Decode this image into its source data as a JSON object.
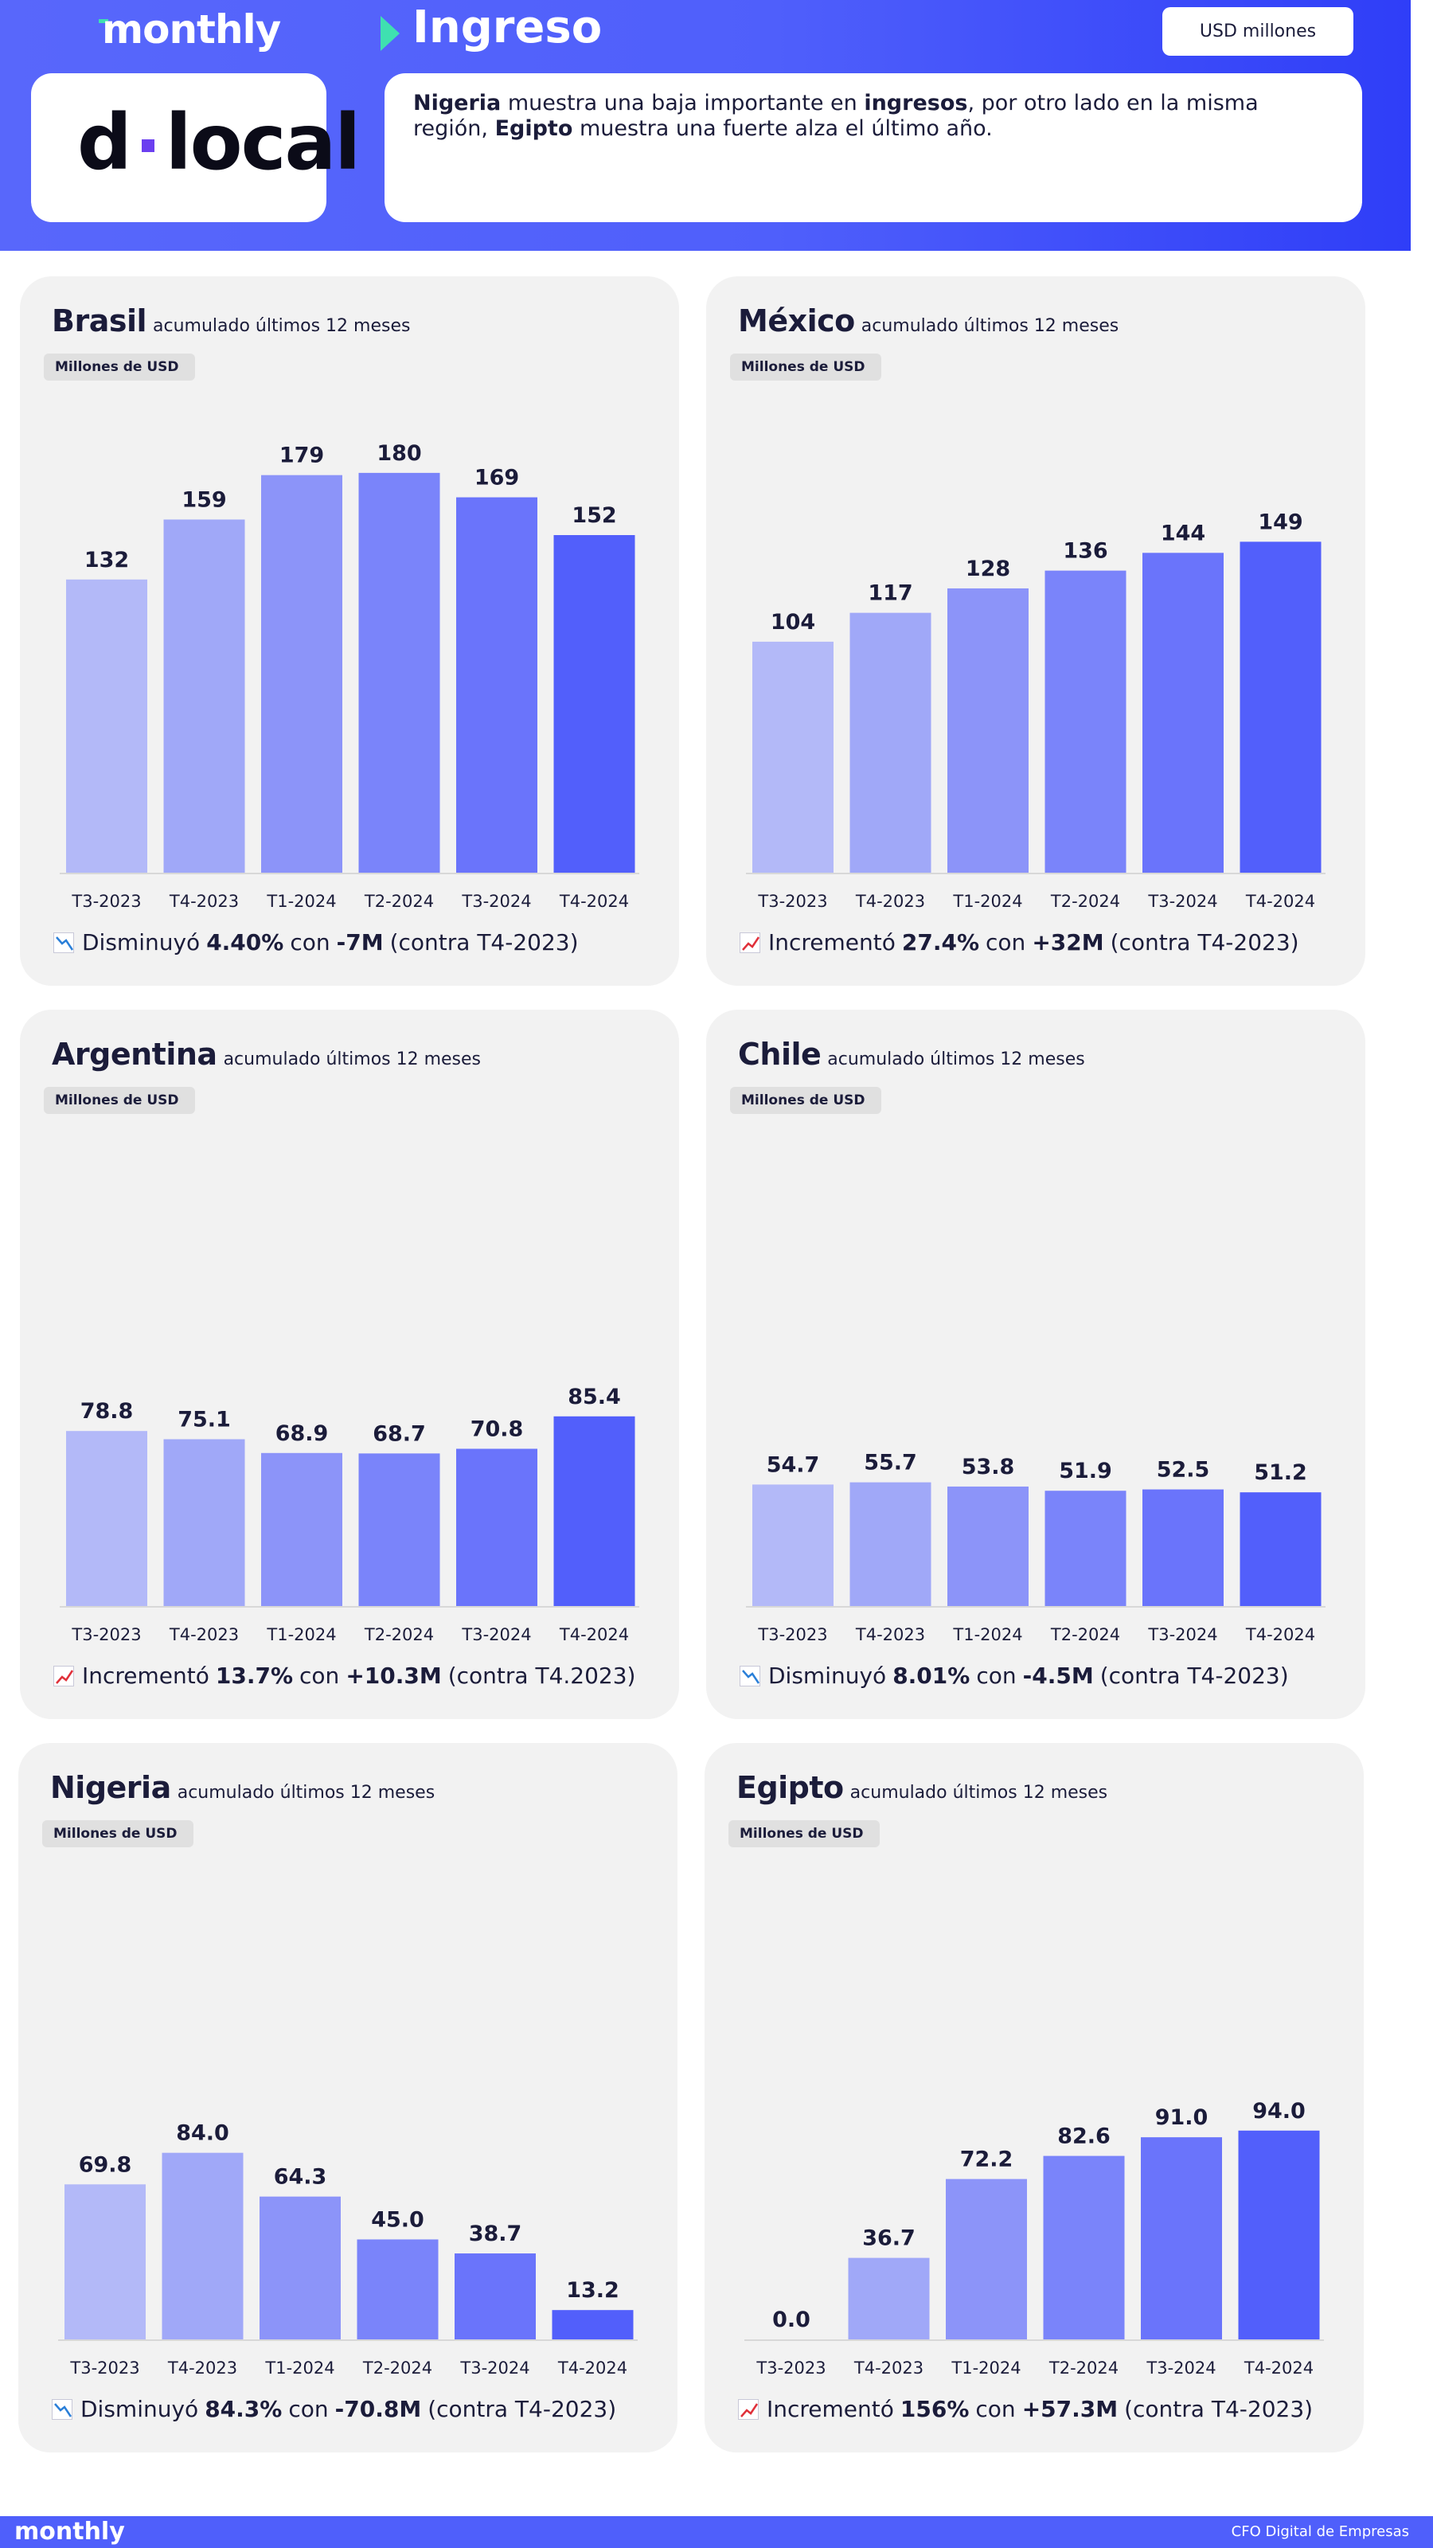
{
  "header": {
    "brand": "monthly",
    "section_title": "Ingreso",
    "units_badge": "USD millones",
    "logo_text": "d·local",
    "summary": {
      "part1": "Nigeria",
      "part2": " muestra una baja importante en ",
      "part3": "ingresos",
      "part4": ", por otro lado en la misma región, ",
      "part5": "Egipto",
      "part6": " muestra una fuerte alza el último año."
    }
  },
  "footer": {
    "brand": "monthly",
    "right_text": "CFO Digital de Empresas"
  },
  "palette": [
    "#b3b9f8",
    "#a0a8f8",
    "#8c94f9",
    "#7a84fa",
    "#6a74fb",
    "#525ffb"
  ],
  "cards": [
    {
      "country": "Brasil",
      "subtitle": "acumulado últimos 12 meses",
      "unit_tag": "Millones de USD",
      "trend": "down",
      "note_prefix": "Disminuyó",
      "note_pct": "4.40%",
      "note_mid": "con",
      "note_abs": "-7M",
      "note_suffix": "(contra T4-2023)"
    },
    {
      "country": "México",
      "subtitle": "acumulado últimos 12 meses",
      "unit_tag": "Millones de USD",
      "trend": "up",
      "note_prefix": "Incrementó",
      "note_pct": "27.4%",
      "note_mid": "con",
      "note_abs": "+32M",
      "note_suffix": "(contra T4-2023)"
    },
    {
      "country": "Argentina",
      "subtitle": "acumulado últimos 12 meses",
      "unit_tag": "Millones de USD",
      "trend": "up",
      "note_prefix": "Incrementó",
      "note_pct": "13.7%",
      "note_mid": "con",
      "note_abs": "+10.3M",
      "note_suffix": "(contra T4.2023)"
    },
    {
      "country": "Chile",
      "subtitle": "acumulado últimos 12 meses",
      "unit_tag": "Millones de USD",
      "trend": "down",
      "note_prefix": "Disminuyó",
      "note_pct": "8.01%",
      "note_mid": "con",
      "note_abs": "-4.5M",
      "note_suffix": "(contra T4-2023)"
    },
    {
      "country": "Nigeria",
      "subtitle": "acumulado últimos 12 meses",
      "unit_tag": "Millones de USD",
      "trend": "down",
      "note_prefix": "Disminuyó",
      "note_pct": "84.3%",
      "note_mid": "con",
      "note_abs": "-70.8M",
      "note_suffix": "(contra T4-2023)"
    },
    {
      "country": "Egipto",
      "subtitle": "acumulado últimos 12 meses",
      "unit_tag": "Millones de USD",
      "trend": "up",
      "note_prefix": "Incrementó",
      "note_pct": "156%",
      "note_mid": "con",
      "note_abs": "+57.3M",
      "note_suffix": "(contra T4-2023)"
    }
  ],
  "chart_data": [
    {
      "type": "bar",
      "title": "Brasil",
      "ylabel": "Millones de USD",
      "categories": [
        "T3-2023",
        "T4-2023",
        "T1-2024",
        "T2-2024",
        "T3-2024",
        "T4-2024"
      ],
      "values": [
        132,
        159,
        179,
        180,
        169,
        152
      ],
      "labels": [
        "132",
        "159",
        "179",
        "180",
        "169",
        "152"
      ],
      "ylim": [
        0,
        190
      ]
    },
    {
      "type": "bar",
      "title": "México",
      "ylabel": "Millones de USD",
      "categories": [
        "T3-2023",
        "T4-2023",
        "T1-2024",
        "T2-2024",
        "T3-2024",
        "T4-2024"
      ],
      "values": [
        104,
        117,
        128,
        136,
        144,
        149
      ],
      "labels": [
        "104",
        "117",
        "128",
        "136",
        "144",
        "149"
      ],
      "ylim": [
        0,
        190
      ]
    },
    {
      "type": "bar",
      "title": "Argentina",
      "ylabel": "Millones de USD",
      "categories": [
        "T3-2023",
        "T4-2023",
        "T1-2024",
        "T2-2024",
        "T3-2024",
        "T4-2024"
      ],
      "values": [
        78.8,
        75.1,
        68.9,
        68.7,
        70.8,
        85.4
      ],
      "labels": [
        "78.8",
        "75.1",
        "68.9",
        "68.7",
        "70.8",
        "85.4"
      ],
      "ylim": [
        0,
        190
      ]
    },
    {
      "type": "bar",
      "title": "Chile",
      "ylabel": "Millones de USD",
      "categories": [
        "T3-2023",
        "T4-2023",
        "T1-2024",
        "T2-2024",
        "T3-2024",
        "T4-2024"
      ],
      "values": [
        54.7,
        55.7,
        53.8,
        51.9,
        52.5,
        51.2
      ],
      "labels": [
        "54.7",
        "55.7",
        "53.8",
        "51.9",
        "52.5",
        "51.2"
      ],
      "ylim": [
        0,
        190
      ]
    },
    {
      "type": "bar",
      "title": "Nigeria",
      "ylabel": "Millones de USD",
      "categories": [
        "T3-2023",
        "T4-2023",
        "T1-2024",
        "T2-2024",
        "T3-2024",
        "T4-2024"
      ],
      "values": [
        69.8,
        84.0,
        64.3,
        45.0,
        38.7,
        13.2
      ],
      "labels": [
        "69.8",
        "84.0",
        "64.3",
        "45.0",
        "38.7",
        "13.2"
      ],
      "ylim": [
        0,
        190
      ]
    },
    {
      "type": "bar",
      "title": "Egipto",
      "ylabel": "Millones de USD",
      "categories": [
        "T3-2023",
        "T4-2023",
        "T1-2024",
        "T2-2024",
        "T3-2024",
        "T4-2024"
      ],
      "values": [
        0.0,
        36.7,
        72.2,
        82.6,
        91.0,
        94.0
      ],
      "labels": [
        "0.0",
        "36.7",
        "72.2",
        "82.6",
        "91.0",
        "94.0"
      ],
      "ylim": [
        0,
        190
      ]
    }
  ]
}
